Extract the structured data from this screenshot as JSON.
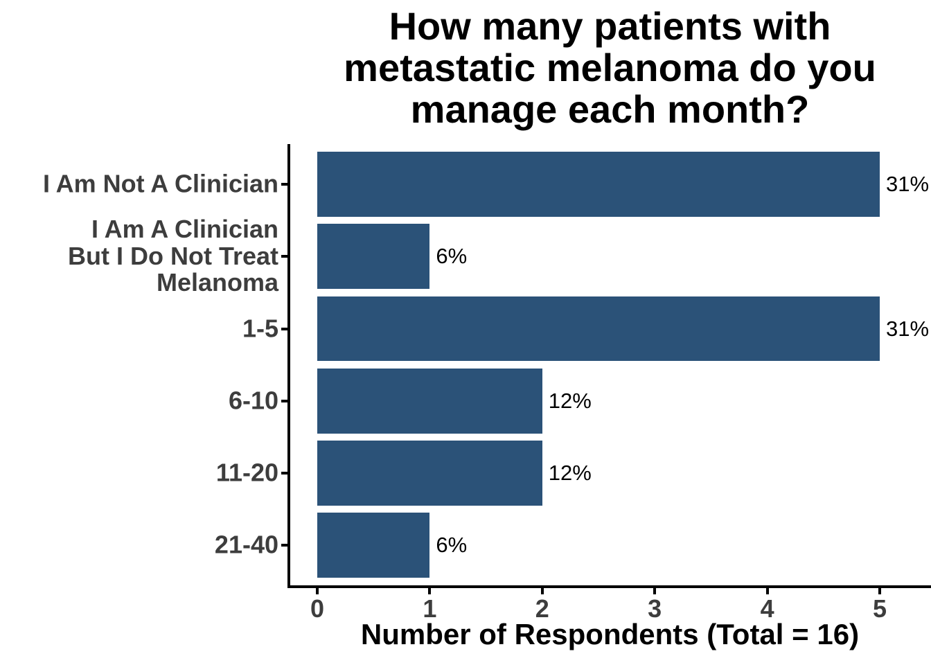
{
  "chart_data": {
    "type": "bar",
    "orientation": "horizontal",
    "title": "How many patients with metastatic melanoma do you manage each month?",
    "title_display": "How many patients with\nmetastatic melanoma do you\nmanage each month?",
    "categories": [
      "I Am Not A Clinician",
      "I Am A Clinician\nBut I Do Not Treat\nMelanoma",
      "1-5",
      "6-10",
      "11-20",
      "21-40"
    ],
    "values": [
      5,
      1,
      5,
      2,
      2,
      1
    ],
    "bar_labels": [
      "31%",
      "6%",
      "31%",
      "12%",
      "12%",
      "6%"
    ],
    "xlabel": "Number of Respondents (Total = 16)",
    "ylabel": "",
    "x_ticks": [
      0,
      1,
      2,
      3,
      4,
      5
    ],
    "xlim": [
      0,
      5.45
    ],
    "total_respondents": 16,
    "grid": false,
    "legend": "none",
    "bar_color": "#2b5278",
    "label_color": "#3d3d3d",
    "value_label_color": "#000000",
    "axis_color": "#000000",
    "background_color": "#ffffff"
  }
}
